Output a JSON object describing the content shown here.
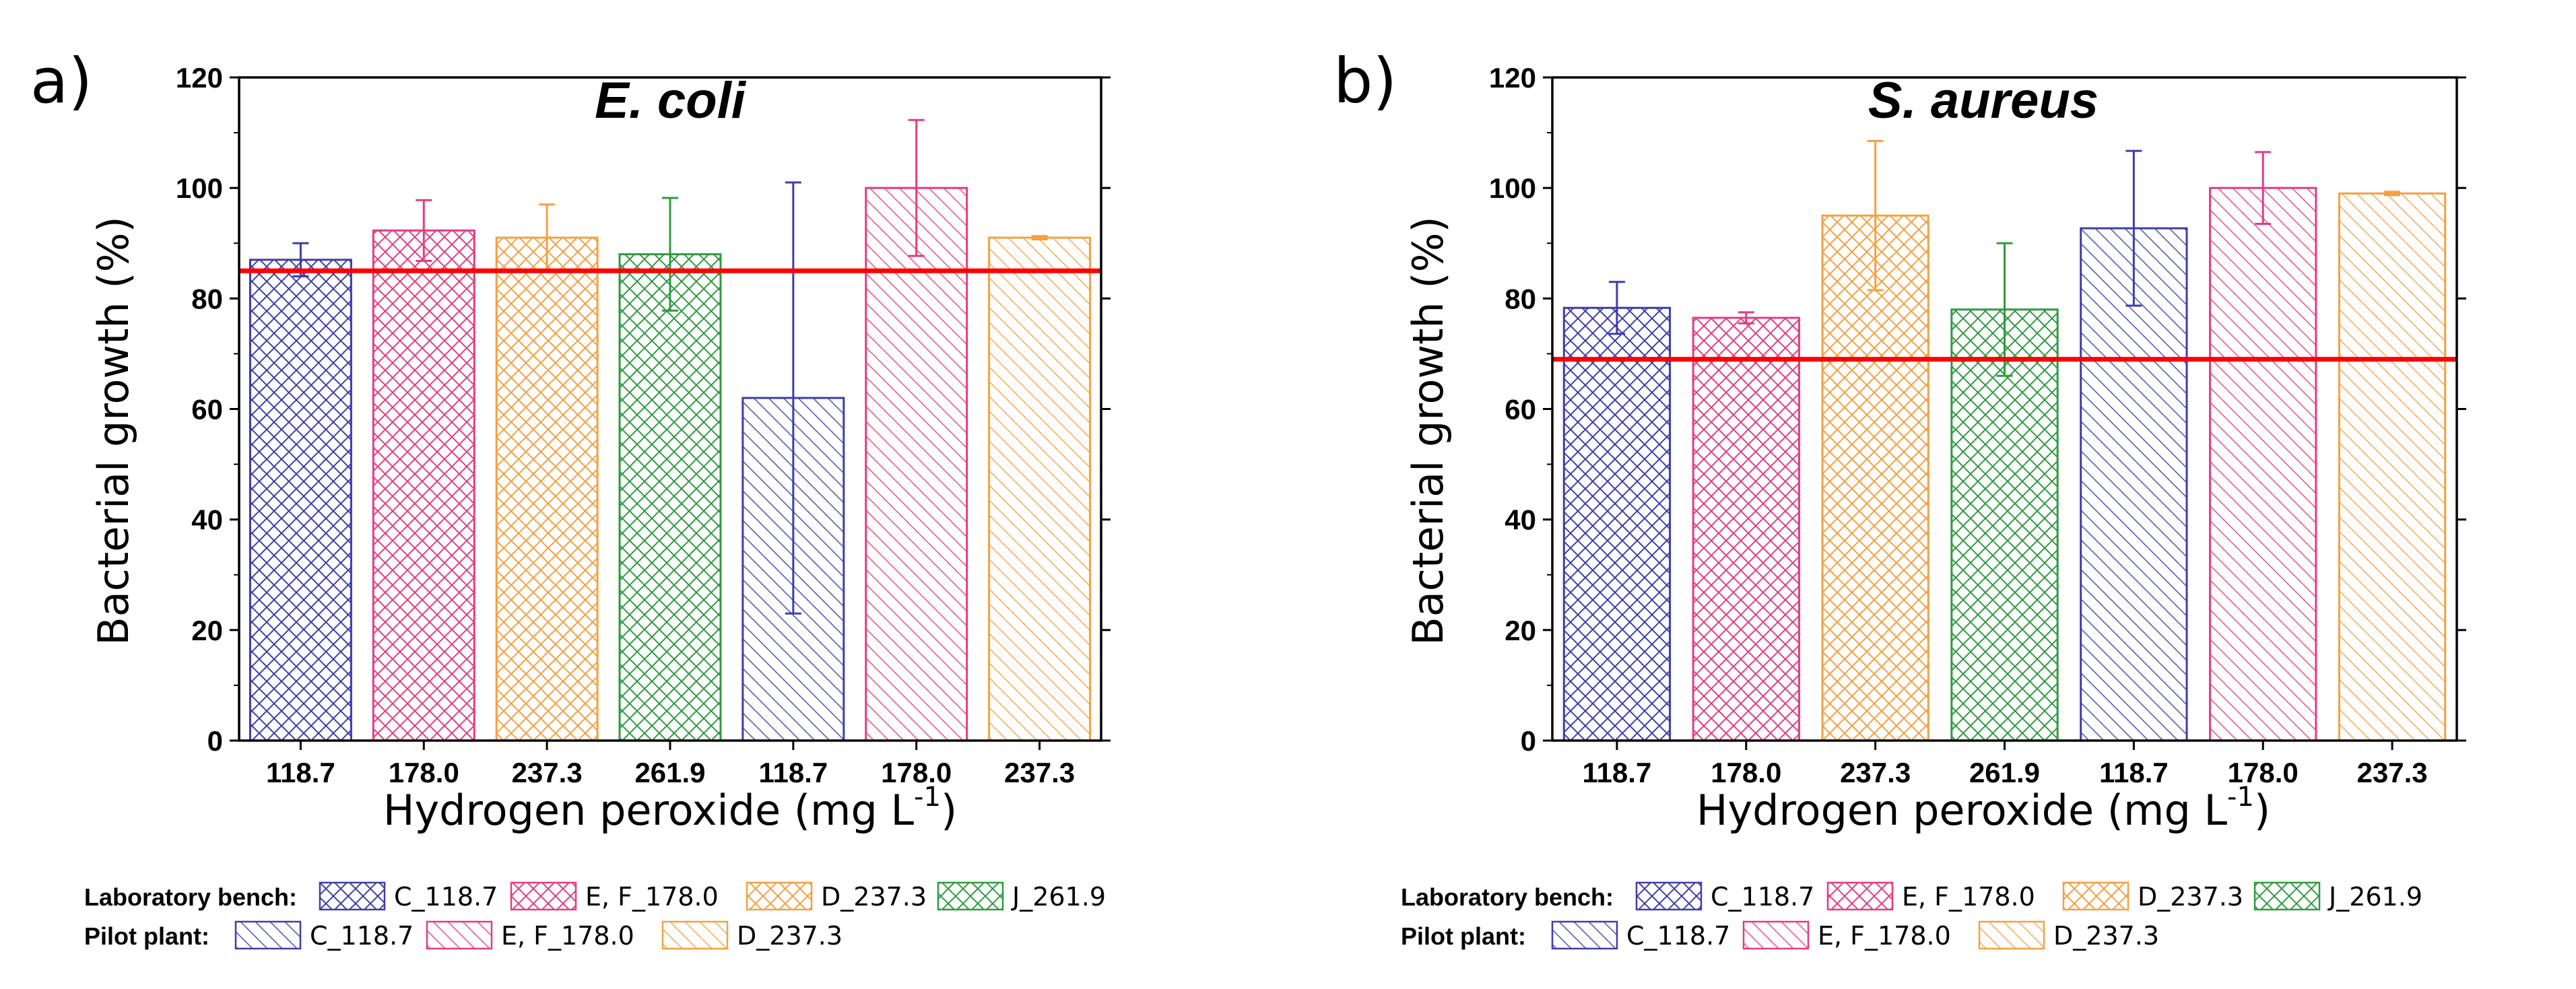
{
  "chart_data": [
    {
      "type": "bar",
      "panel_label": "a)",
      "title": "E. coli",
      "xlabel": "Hydrogen peroxide (mg L",
      "xlabel_sup": "-1",
      "xlabel_end": ")",
      "ylabel": "Bacterial growth (%)",
      "ylim": [
        0,
        120
      ],
      "yticks": [
        "0",
        "20",
        "40",
        "60",
        "80",
        "100",
        "120"
      ],
      "categories": [
        "118.7",
        "178.0",
        "237.3",
        "261.9",
        "118.7",
        "178.0",
        "237.3"
      ],
      "values": [
        87,
        92.3,
        91,
        88,
        62,
        100,
        91
      ],
      "errors": [
        3,
        5.5,
        6,
        10.2,
        39,
        12.3,
        0.3
      ],
      "groups": [
        "Laboratory bench",
        "Laboratory bench",
        "Laboratory bench",
        "Laboratory bench",
        "Pilot plant",
        "Pilot plant",
        "Pilot plant"
      ],
      "colors": [
        "#3d3dab",
        "#e23c82",
        "#f4a040",
        "#2f9a3f",
        "#3d3dab",
        "#e23c82",
        "#f4a040"
      ],
      "threshold": 85,
      "threshold_color": "#ff0000"
    },
    {
      "type": "bar",
      "panel_label": "b)",
      "title": "S. aureus",
      "xlabel": "Hydrogen peroxide (mg L",
      "xlabel_sup": "-1",
      "xlabel_end": ")",
      "ylabel": "Bacterial growth (%)",
      "ylim": [
        0,
        120
      ],
      "yticks": [
        "0",
        "20",
        "40",
        "60",
        "80",
        "100",
        "120"
      ],
      "categories": [
        "118.7",
        "178.0",
        "237.3",
        "261.9",
        "118.7",
        "178.0",
        "237.3"
      ],
      "values": [
        78.3,
        76.5,
        95,
        78,
        92.7,
        100,
        99
      ],
      "errors": [
        4.7,
        1,
        13.5,
        12,
        14,
        6.5,
        0.3
      ],
      "groups": [
        "Laboratory bench",
        "Laboratory bench",
        "Laboratory bench",
        "Laboratory bench",
        "Pilot plant",
        "Pilot plant",
        "Pilot plant"
      ],
      "colors": [
        "#3d3dab",
        "#e23c82",
        "#f4a040",
        "#2f9a3f",
        "#3d3dab",
        "#e23c82",
        "#f4a040"
      ],
      "threshold": 69,
      "threshold_color": "#ff0000"
    }
  ],
  "legend": {
    "rows": [
      {
        "heading": "Laboratory bench:",
        "entries": [
          {
            "label": "C_118.7",
            "color": "#3d3dab",
            "pattern": "cross"
          },
          {
            "label": "E, F_178.0",
            "color": "#e23c82",
            "pattern": "cross"
          },
          {
            "label": "D_237.3",
            "color": "#f4a040",
            "pattern": "cross"
          },
          {
            "label": "J_261.9",
            "color": "#2f9a3f",
            "pattern": "cross"
          }
        ]
      },
      {
        "heading": "Pilot plant:",
        "entries": [
          {
            "label": "C_118.7",
            "color": "#3d3dab",
            "pattern": "diag"
          },
          {
            "label": "E, F_178.0",
            "color": "#e23c82",
            "pattern": "diag"
          },
          {
            "label": "D_237.3",
            "color": "#f4a040",
            "pattern": "diag"
          }
        ]
      }
    ]
  }
}
